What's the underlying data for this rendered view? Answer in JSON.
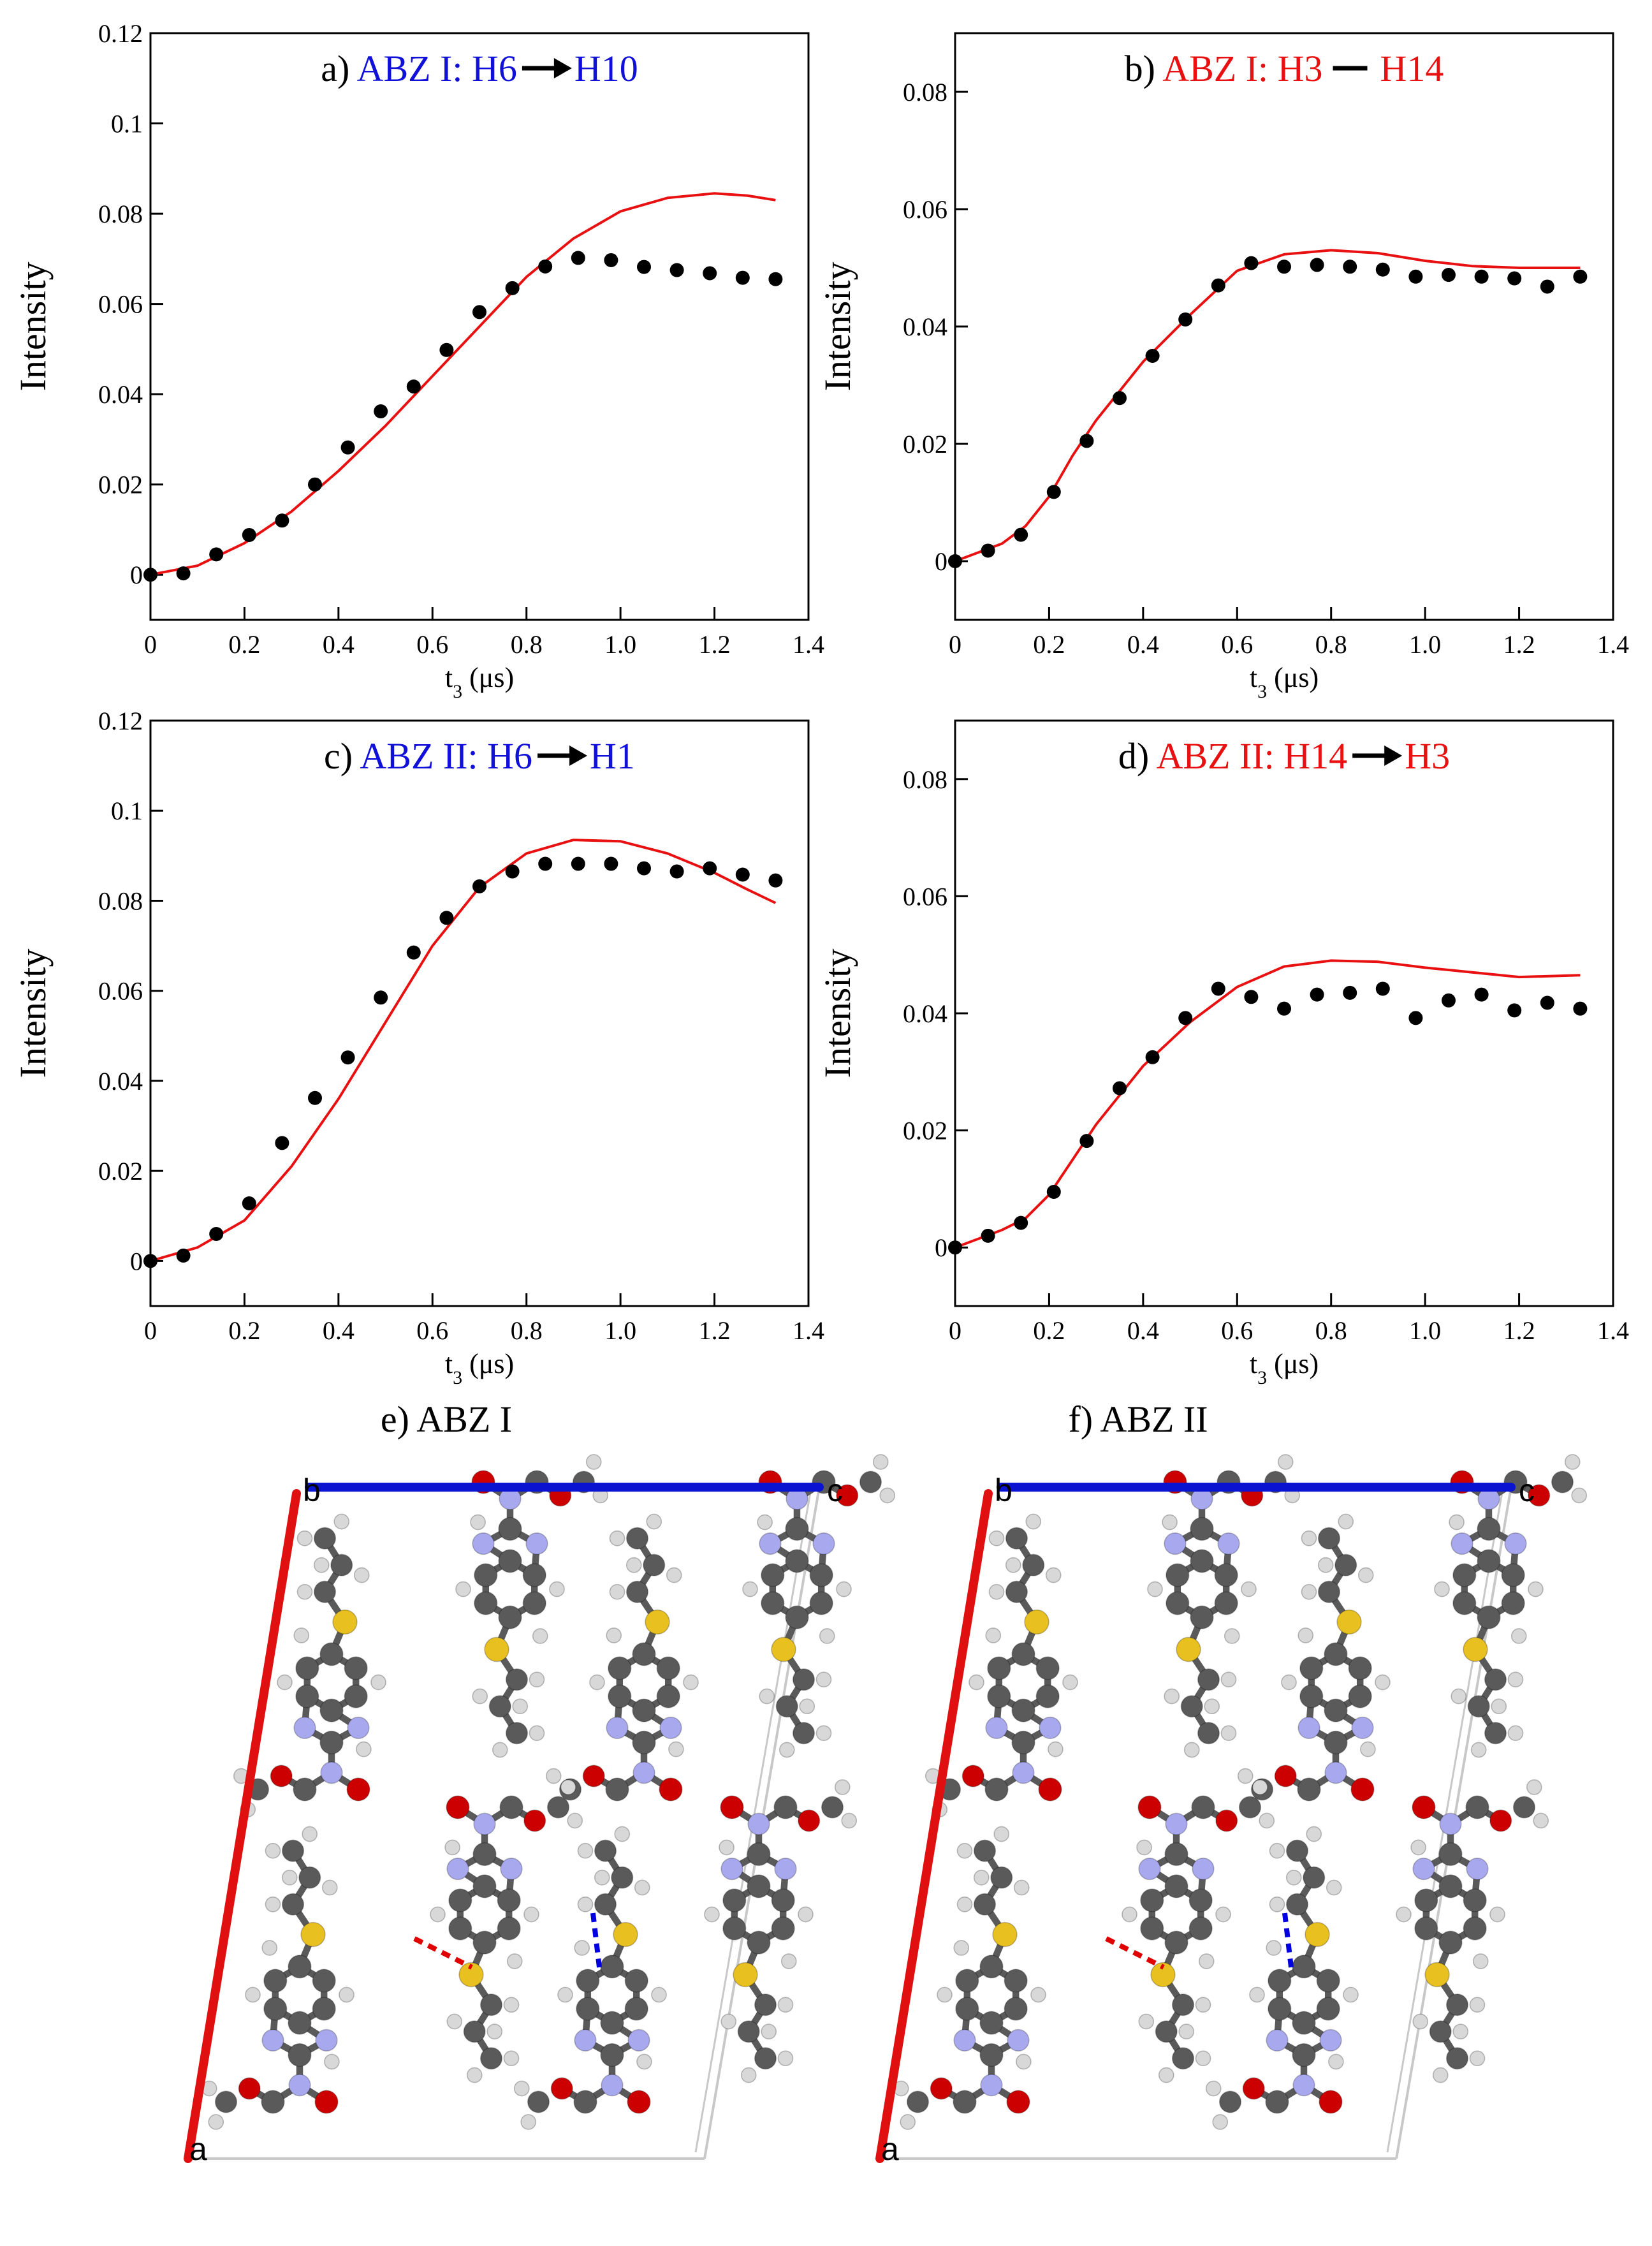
{
  "colors": {
    "blue": "#1010d8",
    "red": "#e81010",
    "black": "#000000",
    "axis_a": "#e01010",
    "axis_c": "#0a14d0",
    "cell": "#c8c8c8",
    "carbon": "#5a5a5a",
    "hydrogen": "#d8d8d8",
    "nitrogen": "#a8a8ee",
    "oxygen": "#cc0000",
    "sulfur": "#e8c020"
  },
  "chart_data": [
    {
      "type": "scatter",
      "id": "a",
      "title_prefix": "a) ",
      "title_text": "ABZ I: H6",
      "title_arrow": "arrow",
      "title_suffix": "H10",
      "title_color": "blue",
      "xlabel_main": "t",
      "xlabel_sub": "3",
      "xlabel_unit": " (μs)",
      "ylabel": "Intensity",
      "xlim": [
        0,
        1.4
      ],
      "ylim": [
        -0.01,
        0.12
      ],
      "xticks": [
        0,
        0.2,
        0.4,
        0.6,
        0.8,
        1.0,
        1.2,
        1.4
      ],
      "xtick_labels": [
        "0",
        "0.2",
        "0.4",
        "0.6",
        "0.8",
        "1.0",
        "1.2",
        "1.4"
      ],
      "yticks": [
        0,
        0.02,
        0.04,
        0.06,
        0.08,
        0.1,
        0.12
      ],
      "ytick_labels": [
        "0",
        "0.02",
        "0.04",
        "0.06",
        "0.08",
        "0.1",
        "0.12"
      ],
      "series": [
        {
          "name": "experiment",
          "style": "points",
          "x": [
            0,
            0.07,
            0.14,
            0.21,
            0.28,
            0.35,
            0.42,
            0.49,
            0.56,
            0.63,
            0.7,
            0.77,
            0.84,
            0.91,
            0.98,
            1.05,
            1.12,
            1.19,
            1.26,
            1.33
          ],
          "y": [
            0.0,
            0.0003,
            0.0045,
            0.0088,
            0.012,
            0.02,
            0.0282,
            0.0362,
            0.0417,
            0.0498,
            0.0582,
            0.0635,
            0.0683,
            0.0702,
            0.0697,
            0.0682,
            0.0675,
            0.0668,
            0.0658,
            0.0655
          ]
        },
        {
          "name": "simulation",
          "style": "line",
          "x": [
            0,
            0.1,
            0.2,
            0.3,
            0.4,
            0.5,
            0.6,
            0.7,
            0.8,
            0.9,
            1.0,
            1.1,
            1.2,
            1.27,
            1.33
          ],
          "y": [
            0.0,
            0.002,
            0.007,
            0.014,
            0.023,
            0.033,
            0.044,
            0.055,
            0.066,
            0.0745,
            0.0805,
            0.0835,
            0.0845,
            0.084,
            0.083
          ]
        }
      ]
    },
    {
      "type": "scatter",
      "id": "b",
      "title_prefix": "b) ",
      "title_text": "ABZ I: H3",
      "title_arrow": "dash",
      "title_suffix": "H14",
      "title_color": "red",
      "xlabel_main": "t",
      "xlabel_sub": "3",
      "xlabel_unit": " (μs)",
      "ylabel": "Intensity",
      "xlim": [
        0,
        1.4
      ],
      "ylim": [
        -0.01,
        0.09
      ],
      "xticks": [
        0,
        0.2,
        0.4,
        0.6,
        0.8,
        1.0,
        1.2,
        1.4
      ],
      "xtick_labels": [
        "0",
        "0.2",
        "0.4",
        "0.6",
        "0.8",
        "1.0",
        "1.2",
        "1.4"
      ],
      "yticks": [
        0,
        0.02,
        0.04,
        0.06,
        0.08
      ],
      "ytick_labels": [
        "0",
        "0.02",
        "0.04",
        "0.06",
        "0.08"
      ],
      "series": [
        {
          "name": "experiment",
          "style": "points",
          "x": [
            0,
            0.07,
            0.14,
            0.21,
            0.28,
            0.35,
            0.42,
            0.49,
            0.56,
            0.63,
            0.7,
            0.77,
            0.84,
            0.91,
            0.98,
            1.05,
            1.12,
            1.19,
            1.26,
            1.33
          ],
          "y": [
            0.0,
            0.0018,
            0.0045,
            0.0118,
            0.0205,
            0.0278,
            0.035,
            0.0412,
            0.047,
            0.0508,
            0.0502,
            0.0505,
            0.0502,
            0.0497,
            0.0485,
            0.0488,
            0.0485,
            0.0482,
            0.0468,
            0.0485
          ]
        },
        {
          "name": "simulation",
          "style": "line",
          "x": [
            0,
            0.1,
            0.15,
            0.2,
            0.25,
            0.3,
            0.35,
            0.4,
            0.5,
            0.6,
            0.7,
            0.8,
            0.9,
            1.0,
            1.1,
            1.2,
            1.33
          ],
          "y": [
            0.0,
            0.003,
            0.006,
            0.011,
            0.018,
            0.024,
            0.029,
            0.034,
            0.042,
            0.0495,
            0.0523,
            0.053,
            0.0525,
            0.0512,
            0.0503,
            0.05,
            0.05
          ]
        }
      ]
    },
    {
      "type": "scatter",
      "id": "c",
      "title_prefix": "c) ",
      "title_text": "ABZ II: H6",
      "title_arrow": "arrow",
      "title_suffix": "H1",
      "title_color": "blue",
      "xlabel_main": "t",
      "xlabel_sub": "3",
      "xlabel_unit": " (μs)",
      "ylabel": "Intensity",
      "xlim": [
        0,
        1.4
      ],
      "ylim": [
        -0.01,
        0.12
      ],
      "xticks": [
        0,
        0.2,
        0.4,
        0.6,
        0.8,
        1.0,
        1.2,
        1.4
      ],
      "xtick_labels": [
        "0",
        "0.2",
        "0.4",
        "0.6",
        "0.8",
        "1.0",
        "1.2",
        "1.4"
      ],
      "yticks": [
        0,
        0.02,
        0.04,
        0.06,
        0.08,
        0.1,
        0.12
      ],
      "ytick_labels": [
        "0",
        "0.02",
        "0.04",
        "0.06",
        "0.08",
        "0.1",
        "0.12"
      ],
      "series": [
        {
          "name": "experiment",
          "style": "points",
          "x": [
            0,
            0.07,
            0.14,
            0.21,
            0.28,
            0.35,
            0.42,
            0.49,
            0.56,
            0.63,
            0.7,
            0.77,
            0.84,
            0.91,
            0.98,
            1.05,
            1.12,
            1.19,
            1.26,
            1.33
          ],
          "y": [
            0.0,
            0.0012,
            0.006,
            0.0128,
            0.0262,
            0.0362,
            0.0452,
            0.0585,
            0.0685,
            0.0762,
            0.0832,
            0.0865,
            0.0882,
            0.0882,
            0.0882,
            0.0872,
            0.0865,
            0.0872,
            0.0858,
            0.0845
          ]
        },
        {
          "name": "simulation",
          "style": "line",
          "x": [
            0,
            0.1,
            0.2,
            0.3,
            0.4,
            0.5,
            0.6,
            0.7,
            0.8,
            0.9,
            1.0,
            1.1,
            1.2,
            1.27,
            1.33
          ],
          "y": [
            0.0,
            0.003,
            0.009,
            0.021,
            0.036,
            0.053,
            0.07,
            0.083,
            0.0905,
            0.0935,
            0.0932,
            0.0905,
            0.0862,
            0.0825,
            0.0795
          ]
        }
      ]
    },
    {
      "type": "scatter",
      "id": "d",
      "title_prefix": "d) ",
      "title_text": "ABZ II: H14",
      "title_arrow": "arrow",
      "title_suffix": "H3",
      "title_color": "red",
      "xlabel_main": "t",
      "xlabel_sub": "3",
      "xlabel_unit": " (μs)",
      "ylabel": "Intensity",
      "xlim": [
        0,
        1.4
      ],
      "ylim": [
        -0.01,
        0.09
      ],
      "xticks": [
        0,
        0.2,
        0.4,
        0.6,
        0.8,
        1.0,
        1.2,
        1.4
      ],
      "xtick_labels": [
        "0",
        "0.2",
        "0.4",
        "0.6",
        "0.8",
        "1.0",
        "1.2",
        "1.4"
      ],
      "yticks": [
        0,
        0.02,
        0.04,
        0.06,
        0.08
      ],
      "ytick_labels": [
        "0",
        "0.02",
        "0.04",
        "0.06",
        "0.08"
      ],
      "series": [
        {
          "name": "experiment",
          "style": "points",
          "x": [
            0,
            0.07,
            0.14,
            0.21,
            0.28,
            0.35,
            0.42,
            0.49,
            0.56,
            0.63,
            0.7,
            0.77,
            0.84,
            0.91,
            0.98,
            1.05,
            1.12,
            1.19,
            1.26,
            1.33
          ],
          "y": [
            0.0,
            0.002,
            0.0042,
            0.0095,
            0.0182,
            0.0272,
            0.0325,
            0.0392,
            0.0442,
            0.0428,
            0.0408,
            0.0432,
            0.0435,
            0.0442,
            0.0392,
            0.0422,
            0.0432,
            0.0405,
            0.0418,
            0.0408
          ]
        },
        {
          "name": "simulation",
          "style": "line",
          "x": [
            0,
            0.1,
            0.15,
            0.2,
            0.25,
            0.3,
            0.35,
            0.4,
            0.5,
            0.6,
            0.7,
            0.8,
            0.9,
            1.0,
            1.1,
            1.2,
            1.33
          ],
          "y": [
            0.0,
            0.003,
            0.005,
            0.009,
            0.015,
            0.021,
            0.026,
            0.031,
            0.0385,
            0.0445,
            0.048,
            0.049,
            0.0488,
            0.0478,
            0.047,
            0.0462,
            0.0465
          ]
        }
      ]
    }
  ],
  "structures": [
    {
      "id": "e",
      "title": "e) ABZ I",
      "axis_labels": {
        "a": "a",
        "b": "b",
        "c": "c"
      }
    },
    {
      "id": "f",
      "title": "f) ABZ II",
      "axis_labels": {
        "a": "a",
        "b": "b",
        "c": "c"
      }
    }
  ]
}
